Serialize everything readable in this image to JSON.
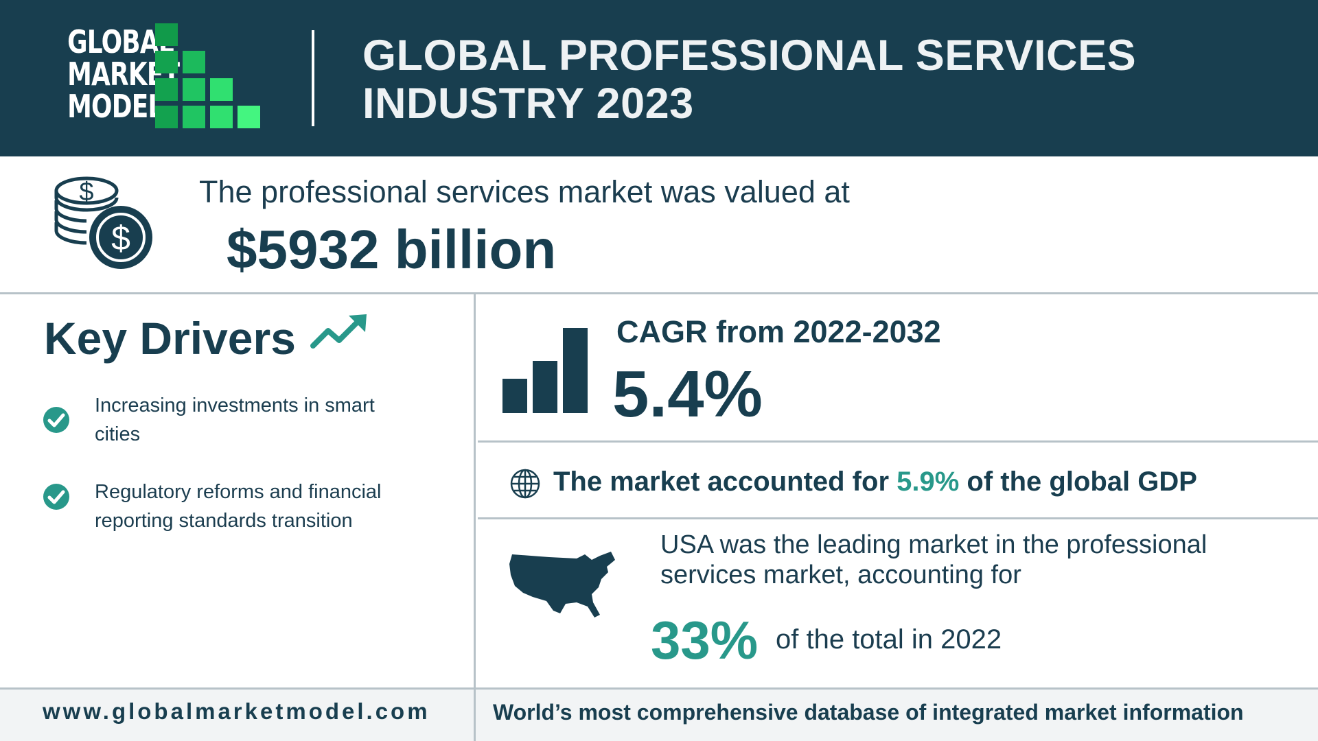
{
  "header": {
    "logo_lines": [
      "GLOBAL",
      "MARKET",
      "MODEL"
    ],
    "title_lines": [
      "GLOBAL PROFESSIONAL SERVICES",
      "INDUSTRY 2023"
    ]
  },
  "valuation": {
    "icon": "coins-dollar-icon",
    "text": "The professional services market was valued at",
    "amount": "$5932 billion"
  },
  "key_drivers": {
    "title": "Key Drivers",
    "icon": "trending-up-icon",
    "items": [
      "Increasing investments in smart cities",
      "Regulatory reforms and financial reporting standards transition"
    ]
  },
  "cagr": {
    "icon": "bar-chart-icon",
    "label": "CAGR from 2022-2032",
    "value": "5.4%"
  },
  "gdp": {
    "icon": "globe-icon",
    "prefix": "The market accounted for ",
    "value": "5.9%",
    "suffix": " of the global GDP"
  },
  "usa": {
    "icon": "usa-map-icon",
    "text": "USA was the leading market in the professional services market, accounting for",
    "value": "33%",
    "tail": "of the total in 2022"
  },
  "footer": {
    "url": "www.globalmarketmodel.com",
    "tagline": "World’s most comprehensive database of integrated market information"
  },
  "colors": {
    "header_bg": "#183e4f",
    "text_dark": "#183e4f",
    "accent_teal": "#28988a",
    "logo_green_dark": "#109446",
    "logo_green_light": "#3ef07a",
    "divider": "#b7c2c8"
  }
}
